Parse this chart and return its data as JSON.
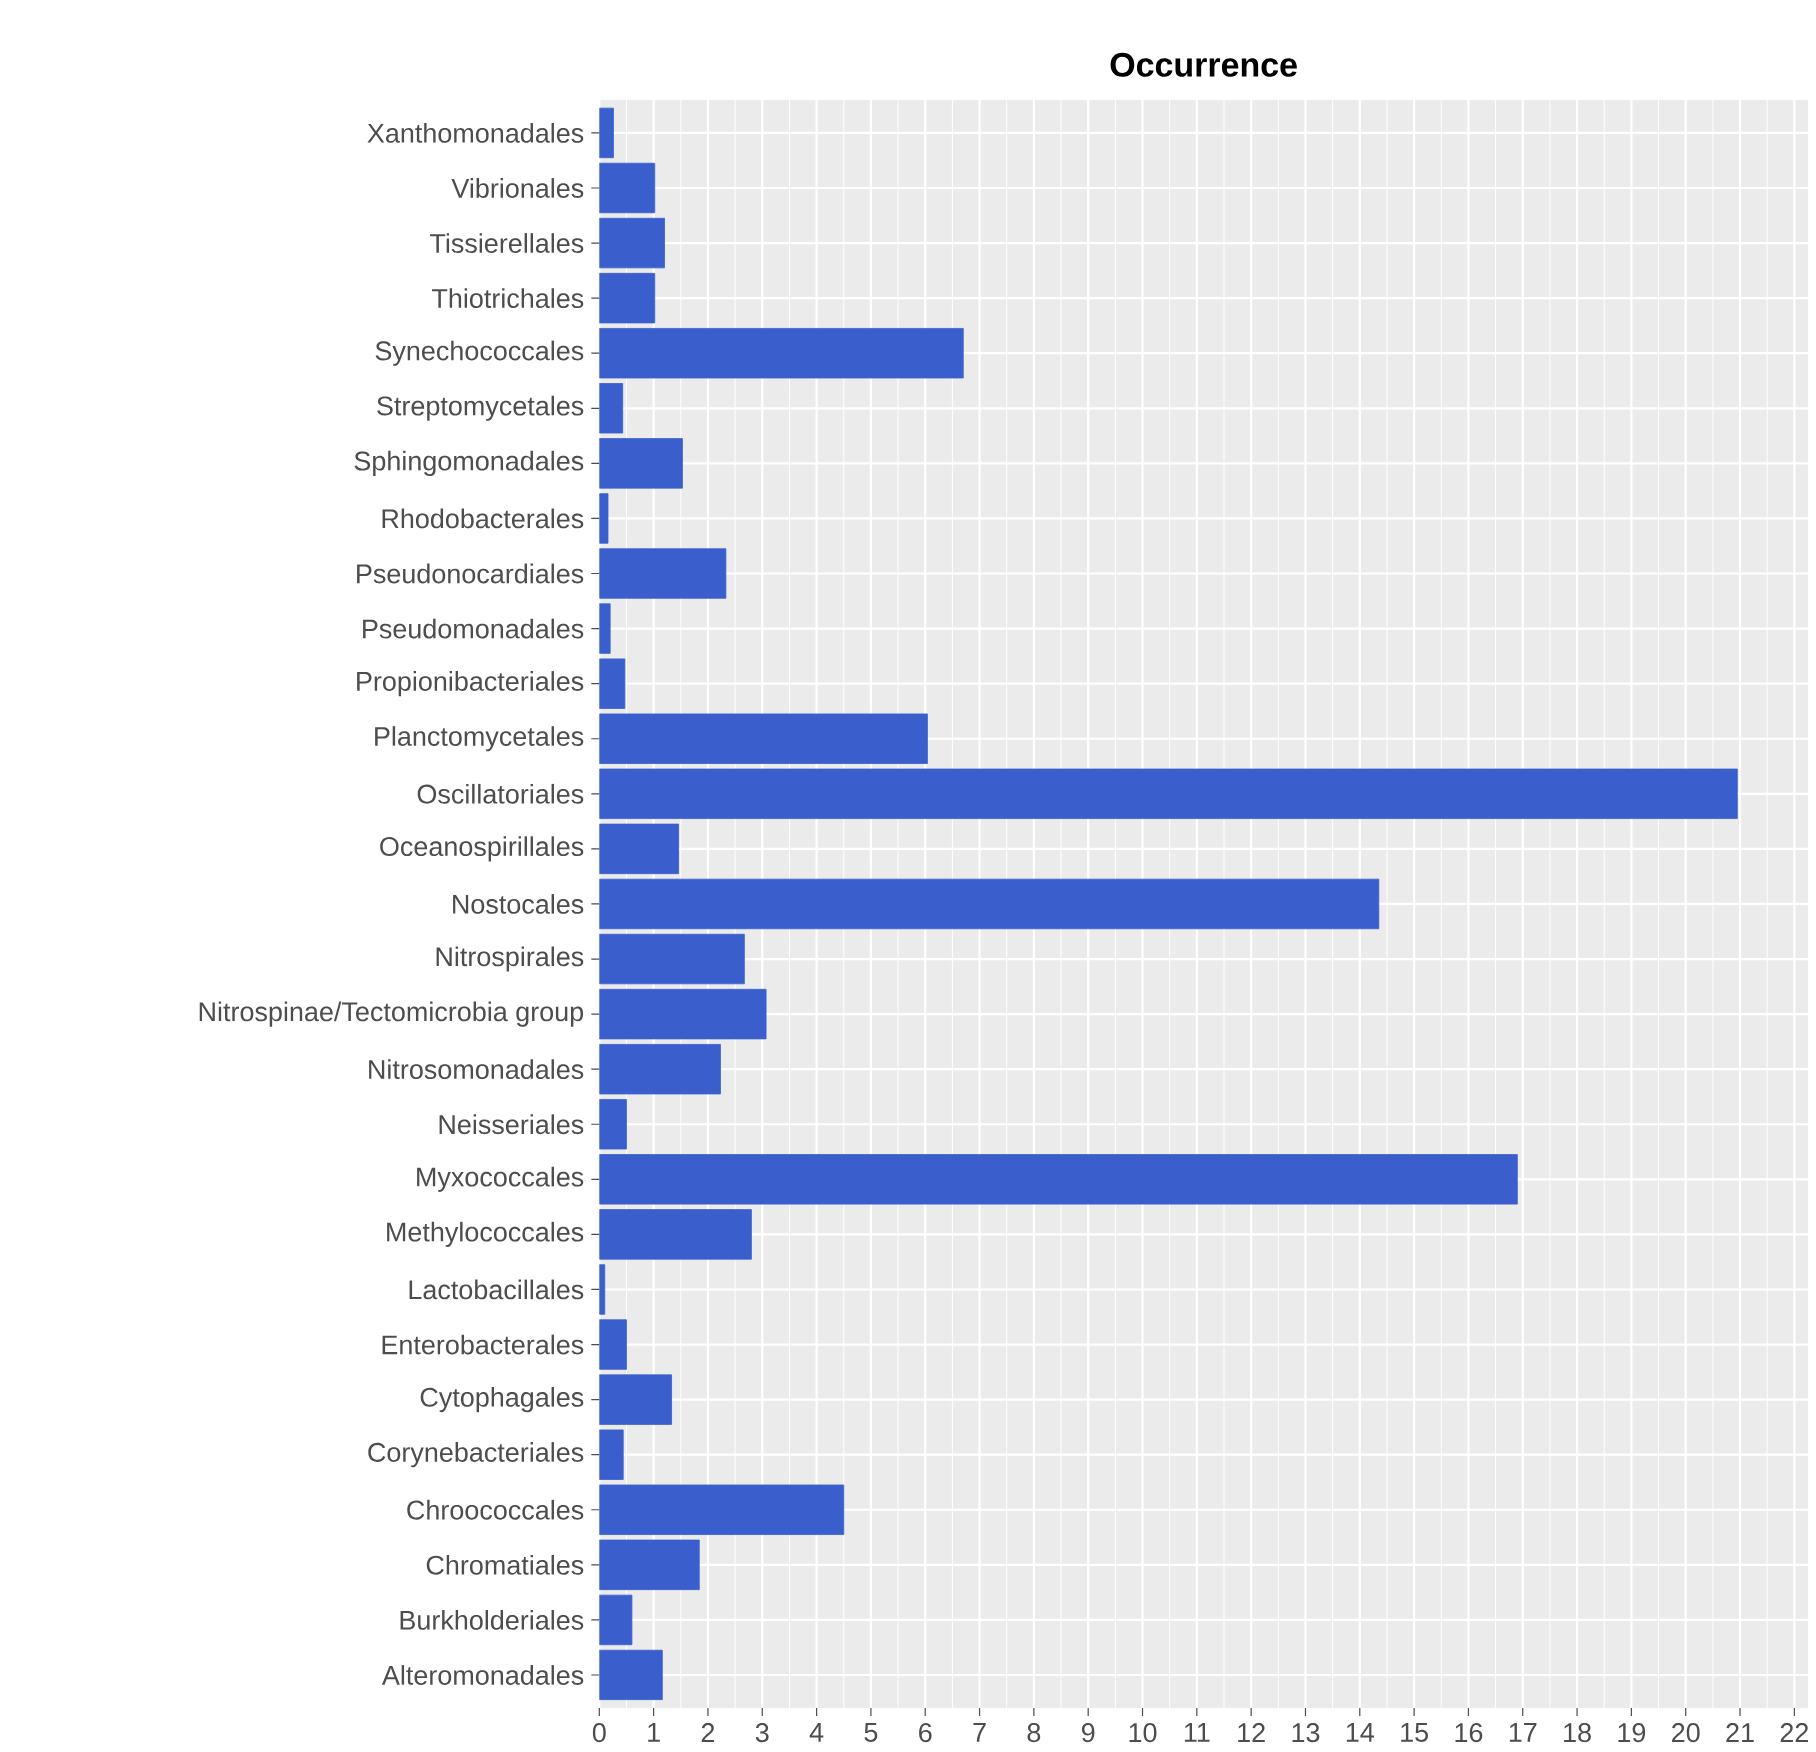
{
  "chart_data": {
    "type": "bar",
    "orientation": "horizontal",
    "title": "Occurrence",
    "categories": [
      "Xanthomonadales",
      "Vibrionales",
      "Tissierellales",
      "Thiotrichales",
      "Synechococcales",
      "Streptomycetales",
      "Sphingomonadales",
      "Rhodobacterales",
      "Pseudonocardiales",
      "Pseudomonadales",
      "Propionibacteriales",
      "Planctomycetales",
      "Oscillatoriales",
      "Oceanospirillales",
      "Nostocales",
      "Nitrospirales",
      "Nitrospinae/Tectomicrobia group",
      "Nitrosomonadales",
      "Neisseriales",
      "Myxococcales",
      "Methylococcales",
      "Lactobacillales",
      "Enterobacterales",
      "Cytophagales",
      "Corynebacteriales",
      "Chroococcales",
      "Chromatiales",
      "Burkholderiales",
      "Alteromonadales"
    ],
    "values": [
      0.26,
      1.02,
      1.2,
      1.02,
      6.7,
      0.43,
      1.53,
      0.16,
      2.33,
      0.2,
      0.47,
      6.04,
      20.95,
      1.46,
      14.35,
      2.67,
      3.07,
      2.23,
      0.5,
      16.9,
      2.8,
      0.1,
      0.5,
      1.33,
      0.44,
      4.5,
      1.84,
      0.6,
      1.16
    ],
    "color": "#3a5fcd",
    "xlim": [
      0,
      22.25
    ],
    "xticks": [
      0,
      1,
      2,
      3,
      4,
      5,
      6,
      7,
      8,
      9,
      10,
      11,
      12,
      13,
      14,
      15,
      16,
      17,
      18,
      19,
      20,
      21,
      22
    ],
    "grid": true
  }
}
